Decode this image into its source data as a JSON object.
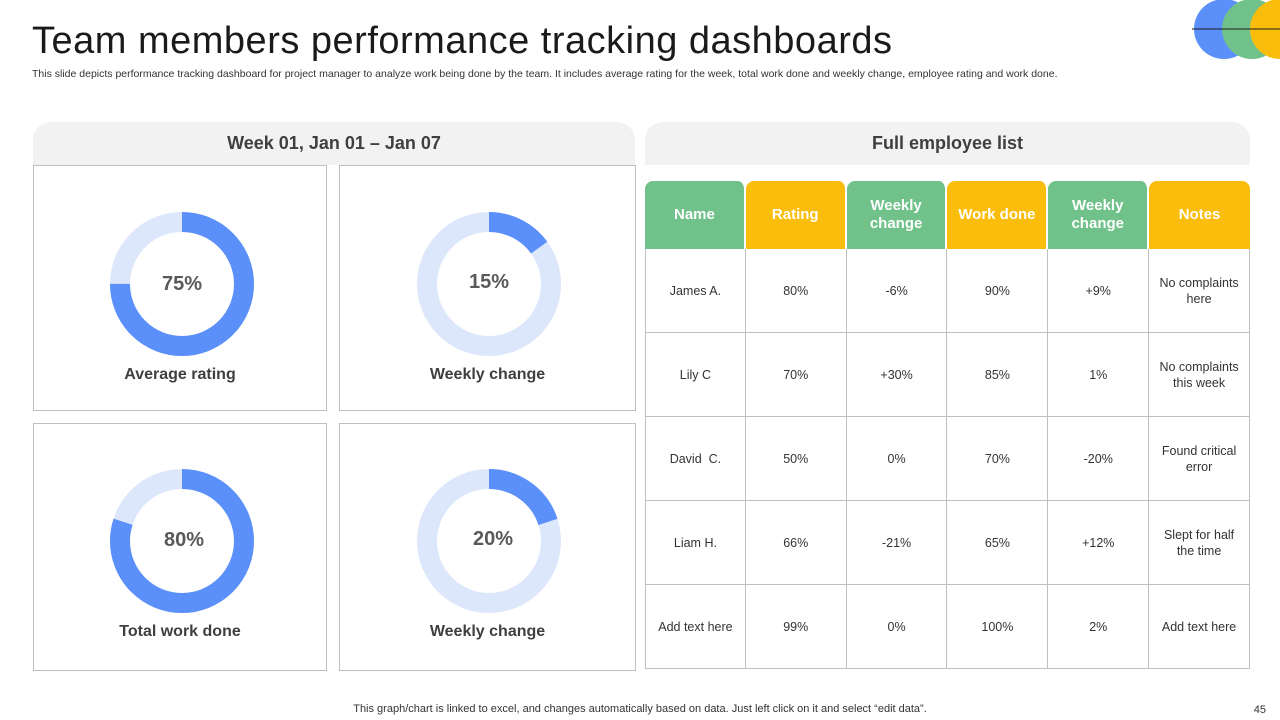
{
  "slide": {
    "title": "Team members performance tracking dashboards",
    "subtitle": "This slide depicts performance tracking dashboard for project manager to analyze work being done by the team. It includes average rating for the week, total work done and weekly change, employee rating and work done.",
    "footer": "This graph/chart is linked to excel,  and changes automatically based on data. Just left click on it and select “edit data”.",
    "page_number": "45"
  },
  "colors": {
    "donut_fill": "#5b8ff9",
    "donut_track": "#dde7fb",
    "green": "#70c28a",
    "yellow": "#fbbd0c",
    "logo_blue": "#5b8ff9",
    "logo_green": "#70c28a",
    "logo_yellow": "#fbbd0c"
  },
  "week_panel": {
    "title": "Week 01, Jan 01 – Jan 07",
    "donuts": [
      {
        "label": "Average rating",
        "value_text": "75%",
        "percent": 75
      },
      {
        "label": "Weekly change",
        "value_text": "15%",
        "percent": 15
      },
      {
        "label": "Total work done",
        "value_text": "80%",
        "percent": 80
      },
      {
        "label": "Weekly change",
        "value_text": "20%",
        "percent": 20
      }
    ]
  },
  "employee_panel": {
    "title": "Full employee list",
    "columns": [
      "Name",
      "Rating",
      "Weekly change",
      "Work done",
      "Weekly change",
      "Notes"
    ],
    "rows": [
      [
        "James A.",
        "80%",
        "-6%",
        "90%",
        "+9%",
        "No complaints here"
      ],
      [
        "Lily C",
        "70%",
        "+30%",
        "85%",
        "1%",
        "No complaints this week"
      ],
      [
        "David  C.",
        "50%",
        "0%",
        "70%",
        "-20%",
        "Found critical error"
      ],
      [
        "Liam H.",
        "66%",
        "-21%",
        "65%",
        "+12%",
        "Slept for half the time"
      ],
      [
        "Add text here",
        "99%",
        "0%",
        "100%",
        "2%",
        "Add text here"
      ]
    ]
  }
}
